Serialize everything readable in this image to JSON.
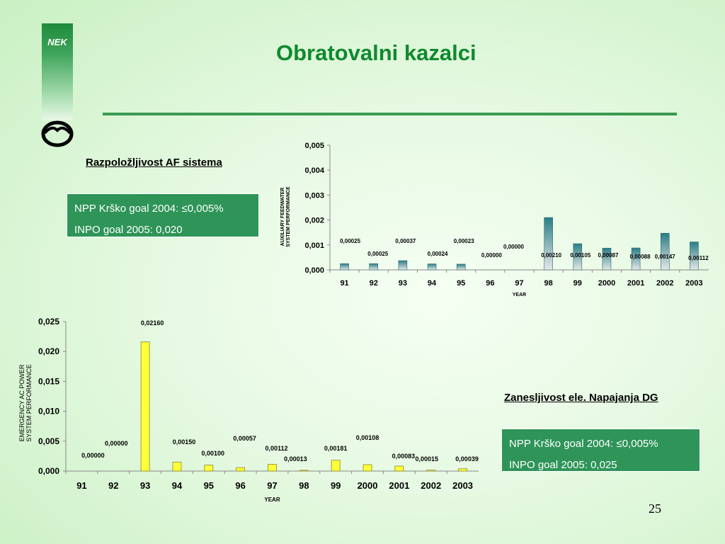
{
  "title": "Obratovalni kazalci",
  "logo": {
    "text": "NEK"
  },
  "page_number": "25",
  "af_section": {
    "heading": "Razpoložljivost AF sistema",
    "goals": [
      "NPP Krško goal 2004: ≤0,005%",
      "INPO goal 2005: 0,020"
    ]
  },
  "dg_section": {
    "heading": "Zanesljivost ele. Napajanja DG",
    "goals": [
      "NPP Krško goal 2004: ≤0,005%",
      "INPO goal 2005: 0,025"
    ]
  },
  "chart_data": [
    {
      "type": "bar",
      "id": "af",
      "categories": [
        "91",
        "92",
        "93",
        "94",
        "95",
        "96",
        "97",
        "98",
        "99",
        "2000",
        "2001",
        "2002",
        "2003"
      ],
      "values": [
        0.00025,
        0.00025,
        0.00037,
        0.00024,
        0.00023,
        0.0,
        0.0,
        0.0021,
        0.00105,
        0.00087,
        0.00088,
        0.00147,
        0.00112
      ],
      "data_labels": [
        "0,00025",
        "0,00025",
        "0,00037",
        "0,00024",
        "0,00023",
        "0,00000",
        "0,00000",
        "0,00210",
        "0,00105",
        "0,00087",
        "0,00088",
        "0,00147",
        "0,00112"
      ],
      "xlabel": "YEAR",
      "ylabel": [
        "AUXILIARY FEEDWATER",
        "SYSTEM PERFORMANCE"
      ],
      "ylim": [
        0,
        0.005
      ],
      "yticks": [
        "0,000",
        "0,001",
        "0,002",
        "0,003",
        "0,004",
        "0,005"
      ],
      "bar_color": "#2a7e86",
      "bar_color_light": "#e6e6e6",
      "grid": false
    },
    {
      "type": "bar",
      "id": "dg",
      "categories": [
        "91",
        "92",
        "93",
        "94",
        "95",
        "96",
        "97",
        "98",
        "99",
        "2000",
        "2001",
        "2002",
        "2003"
      ],
      "values": [
        0.0,
        0.0,
        0.0216,
        0.0015,
        0.001,
        0.00057,
        0.00112,
        0.00013,
        0.00181,
        0.00108,
        0.00083,
        0.00015,
        0.00039
      ],
      "data_labels": [
        "0,00000",
        "0,00000",
        "0,02160",
        "0,00150",
        "0,00100",
        "0,00057",
        "0,00112",
        "0,00013",
        "0,00181",
        "0,00108",
        "0,00083",
        "0,00015",
        "0,00039"
      ],
      "xlabel": "YEAR",
      "ylabel": [
        "EMERGENCY AC POWER",
        "SYSTEM PERFORMANCE"
      ],
      "ylim": [
        0,
        0.025
      ],
      "yticks": [
        "0,000",
        "0,005",
        "0,010",
        "0,015",
        "0,020",
        "0,025"
      ],
      "bar_color": "#ffff3a",
      "bar_stroke": "#8a8a2a",
      "grid": false
    }
  ]
}
